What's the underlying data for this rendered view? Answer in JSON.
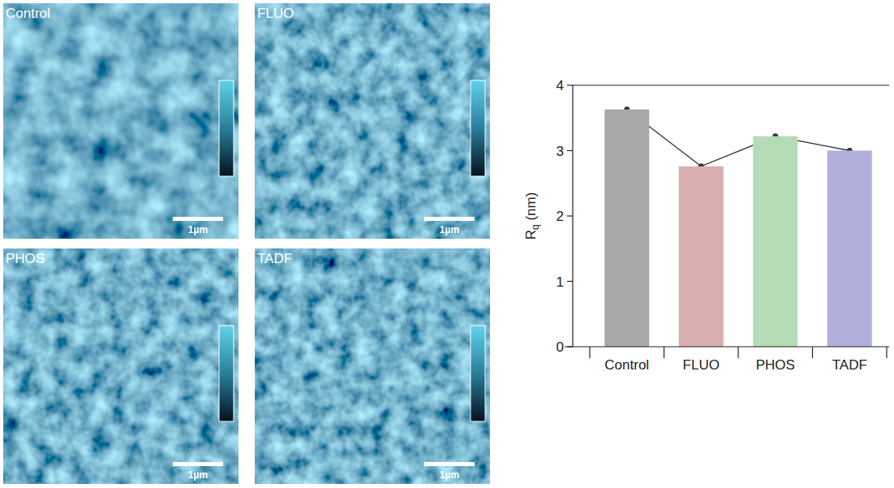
{
  "images": [
    {
      "label": "Control",
      "scale_bar": "1µm"
    },
    {
      "label": "FLUO",
      "scale_bar": "1µm"
    },
    {
      "label": "PHOS",
      "scale_bar": "1µm"
    },
    {
      "label": "TADF",
      "scale_bar": "1µm"
    }
  ],
  "chart_data": {
    "type": "bar",
    "y_label": "Rq (nm)",
    "categories": [
      "Control",
      "FLUO",
      "PHOS",
      "TADF"
    ],
    "values": [
      3.63,
      2.76,
      3.22,
      3.0
    ],
    "colors": [
      "#a8a8a8",
      "#d9aeae",
      "#b3dcb4",
      "#b0afdc"
    ],
    "marker": "circle",
    "line_style": "solid",
    "ylim": [
      0,
      4
    ],
    "yticks": [
      0,
      1,
      2,
      3,
      4
    ],
    "grid": false
  }
}
